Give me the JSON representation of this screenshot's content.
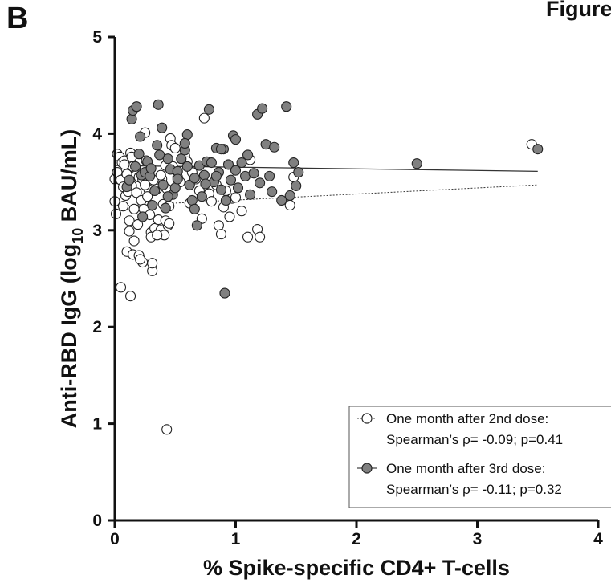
{
  "panel_label": "B",
  "figure_label": "Figure",
  "chart_data": {
    "type": "scatter",
    "xlabel": "% Spike-specific CD4+ T-cells",
    "ylabel_pre": "Anti-RBD IgG (log",
    "ylabel_sub": "10",
    "ylabel_post": " BAU/mL)",
    "xlim": [
      0,
      4
    ],
    "ylim": [
      0,
      5
    ],
    "x_ticks": [
      "0",
      "1",
      "2",
      "3",
      "4"
    ],
    "y_ticks": [
      "0",
      "1",
      "2",
      "3",
      "4",
      "5"
    ],
    "legend_position": "bottom-right",
    "series": [
      {
        "name": "One month after 2nd dose:",
        "stat": "Spearman’s ρ= -0.09; p=0.41",
        "marker_fill": "#ffffff",
        "marker_stroke": "#222222",
        "line_style": "dotted",
        "fit": {
          "x": [
            0,
            3.5
          ],
          "y": [
            3.25,
            3.47
          ]
        },
        "points": [
          [
            0.0,
            3.53
          ],
          [
            0.0,
            3.3
          ],
          [
            0.01,
            3.17
          ],
          [
            0.02,
            3.6
          ],
          [
            0.02,
            3.79
          ],
          [
            0.04,
            3.76
          ],
          [
            0.05,
            3.52
          ],
          [
            0.05,
            2.41
          ],
          [
            0.06,
            3.7
          ],
          [
            0.07,
            3.45
          ],
          [
            0.07,
            3.25
          ],
          [
            0.08,
            3.72
          ],
          [
            0.09,
            3.36
          ],
          [
            0.1,
            3.58
          ],
          [
            0.1,
            2.78
          ],
          [
            0.11,
            3.4
          ],
          [
            0.12,
            3.1
          ],
          [
            0.12,
            2.99
          ],
          [
            0.13,
            3.8
          ],
          [
            0.14,
            3.76
          ],
          [
            0.14,
            3.46
          ],
          [
            0.15,
            2.75
          ],
          [
            0.16,
            3.22
          ],
          [
            0.16,
            2.89
          ],
          [
            0.17,
            3.64
          ],
          [
            0.18,
            3.39
          ],
          [
            0.19,
            3.06
          ],
          [
            0.2,
            3.55
          ],
          [
            0.2,
            2.74
          ],
          [
            0.22,
            3.31
          ],
          [
            0.23,
            3.53
          ],
          [
            0.23,
            2.67
          ],
          [
            0.24,
            3.22
          ],
          [
            0.25,
            4.01
          ],
          [
            0.26,
            3.72
          ],
          [
            0.28,
            3.42
          ],
          [
            0.29,
            3.16
          ],
          [
            0.3,
            2.98
          ],
          [
            0.31,
            2.58
          ],
          [
            0.31,
            2.66
          ],
          [
            0.33,
            3.02
          ],
          [
            0.35,
            3.43
          ],
          [
            0.36,
            3.11
          ],
          [
            0.38,
            3.0
          ],
          [
            0.39,
            3.53
          ],
          [
            0.4,
            3.27
          ],
          [
            0.41,
            2.95
          ],
          [
            0.42,
            3.67
          ],
          [
            0.43,
            3.43
          ],
          [
            0.44,
            3.05
          ],
          [
            0.45,
            3.25
          ],
          [
            0.46,
            3.95
          ],
          [
            0.47,
            3.88
          ],
          [
            0.48,
            3.66
          ],
          [
            0.5,
            3.85
          ],
          [
            0.52,
            3.55
          ],
          [
            0.54,
            3.5
          ],
          [
            0.58,
            3.77
          ],
          [
            0.6,
            3.71
          ],
          [
            0.62,
            3.28
          ],
          [
            0.64,
            3.6
          ],
          [
            0.67,
            3.53
          ],
          [
            0.7,
            3.41
          ],
          [
            0.72,
            3.12
          ],
          [
            0.74,
            4.16
          ],
          [
            0.78,
            3.38
          ],
          [
            0.8,
            3.3
          ],
          [
            0.84,
            3.47
          ],
          [
            0.86,
            3.05
          ],
          [
            0.88,
            2.96
          ],
          [
            0.9,
            3.24
          ],
          [
            0.92,
            3.41
          ],
          [
            0.95,
            3.14
          ],
          [
            0.97,
            3.33
          ],
          [
            1.0,
            3.34
          ],
          [
            1.05,
            3.2
          ],
          [
            1.1,
            2.93
          ],
          [
            1.12,
            3.73
          ],
          [
            1.18,
            3.01
          ],
          [
            1.2,
            2.93
          ],
          [
            1.45,
            3.26
          ],
          [
            1.48,
            3.55
          ],
          [
            3.45,
            3.89
          ],
          [
            0.3,
            2.93
          ],
          [
            0.35,
            2.95
          ],
          [
            0.25,
            3.47
          ],
          [
            0.15,
            3.66
          ],
          [
            0.13,
            2.32
          ],
          [
            0.43,
            0.94
          ],
          [
            0.42,
            3.1
          ],
          [
            0.45,
            3.07
          ],
          [
            0.08,
            3.68
          ],
          [
            0.21,
            2.7
          ],
          [
            0.27,
            3.35
          ],
          [
            0.32,
            3.52
          ],
          [
            0.38,
            3.57
          ]
        ]
      },
      {
        "name": "One month after 3rd dose:",
        "stat": "Spearman’s ρ= -0.11; p=0.32",
        "marker_fill": "#808080",
        "marker_stroke": "#222222",
        "line_style": "solid",
        "fit": {
          "x": [
            0,
            3.5
          ],
          "y": [
            3.67,
            3.61
          ]
        },
        "points": [
          [
            0.1,
            3.45
          ],
          [
            0.12,
            3.52
          ],
          [
            0.14,
            4.15
          ],
          [
            0.15,
            4.24
          ],
          [
            0.17,
            3.66
          ],
          [
            0.18,
            4.28
          ],
          [
            0.2,
            3.79
          ],
          [
            0.21,
            3.97
          ],
          [
            0.22,
            3.57
          ],
          [
            0.23,
            3.14
          ],
          [
            0.25,
            3.6
          ],
          [
            0.27,
            3.71
          ],
          [
            0.29,
            3.56
          ],
          [
            0.31,
            3.26
          ],
          [
            0.33,
            3.41
          ],
          [
            0.35,
            3.88
          ],
          [
            0.36,
            4.3
          ],
          [
            0.37,
            3.78
          ],
          [
            0.39,
            4.06
          ],
          [
            0.4,
            3.47
          ],
          [
            0.42,
            3.23
          ],
          [
            0.44,
            3.74
          ],
          [
            0.46,
            3.63
          ],
          [
            0.48,
            3.37
          ],
          [
            0.5,
            3.44
          ],
          [
            0.52,
            3.61
          ],
          [
            0.55,
            3.74
          ],
          [
            0.58,
            3.83
          ],
          [
            0.6,
            3.99
          ],
          [
            0.62,
            3.47
          ],
          [
            0.64,
            3.31
          ],
          [
            0.66,
            3.54
          ],
          [
            0.68,
            3.05
          ],
          [
            0.7,
            3.67
          ],
          [
            0.72,
            3.35
          ],
          [
            0.74,
            3.57
          ],
          [
            0.76,
            3.71
          ],
          [
            0.78,
            4.25
          ],
          [
            0.8,
            3.7
          ],
          [
            0.82,
            3.5
          ],
          [
            0.84,
            3.85
          ],
          [
            0.86,
            3.6
          ],
          [
            0.88,
            3.42
          ],
          [
            0.9,
            3.84
          ],
          [
            0.91,
            2.35
          ],
          [
            0.92,
            3.31
          ],
          [
            0.94,
            3.68
          ],
          [
            0.96,
            3.52
          ],
          [
            0.98,
            3.98
          ],
          [
            1.0,
            3.62
          ],
          [
            1.02,
            3.44
          ],
          [
            1.05,
            3.7
          ],
          [
            1.08,
            3.56
          ],
          [
            1.1,
            3.78
          ],
          [
            1.12,
            3.37
          ],
          [
            1.15,
            3.59
          ],
          [
            1.18,
            4.2
          ],
          [
            1.2,
            3.49
          ],
          [
            1.22,
            4.26
          ],
          [
            1.25,
            3.89
          ],
          [
            1.28,
            3.56
          ],
          [
            1.3,
            3.4
          ],
          [
            1.32,
            3.86
          ],
          [
            1.38,
            3.31
          ],
          [
            1.42,
            4.28
          ],
          [
            1.45,
            3.36
          ],
          [
            1.48,
            3.7
          ],
          [
            1.5,
            3.46
          ],
          [
            1.52,
            3.6
          ],
          [
            2.5,
            3.69
          ],
          [
            3.5,
            3.84
          ],
          [
            0.58,
            3.9
          ],
          [
            0.66,
            3.22
          ],
          [
            0.75,
            3.48
          ],
          [
            0.88,
            3.84
          ],
          [
            1.0,
            3.94
          ],
          [
            0.52,
            3.53
          ],
          [
            0.44,
            3.35
          ],
          [
            0.3,
            3.64
          ],
          [
            0.6,
            3.66
          ],
          [
            0.84,
            3.56
          ]
        ]
      }
    ]
  }
}
